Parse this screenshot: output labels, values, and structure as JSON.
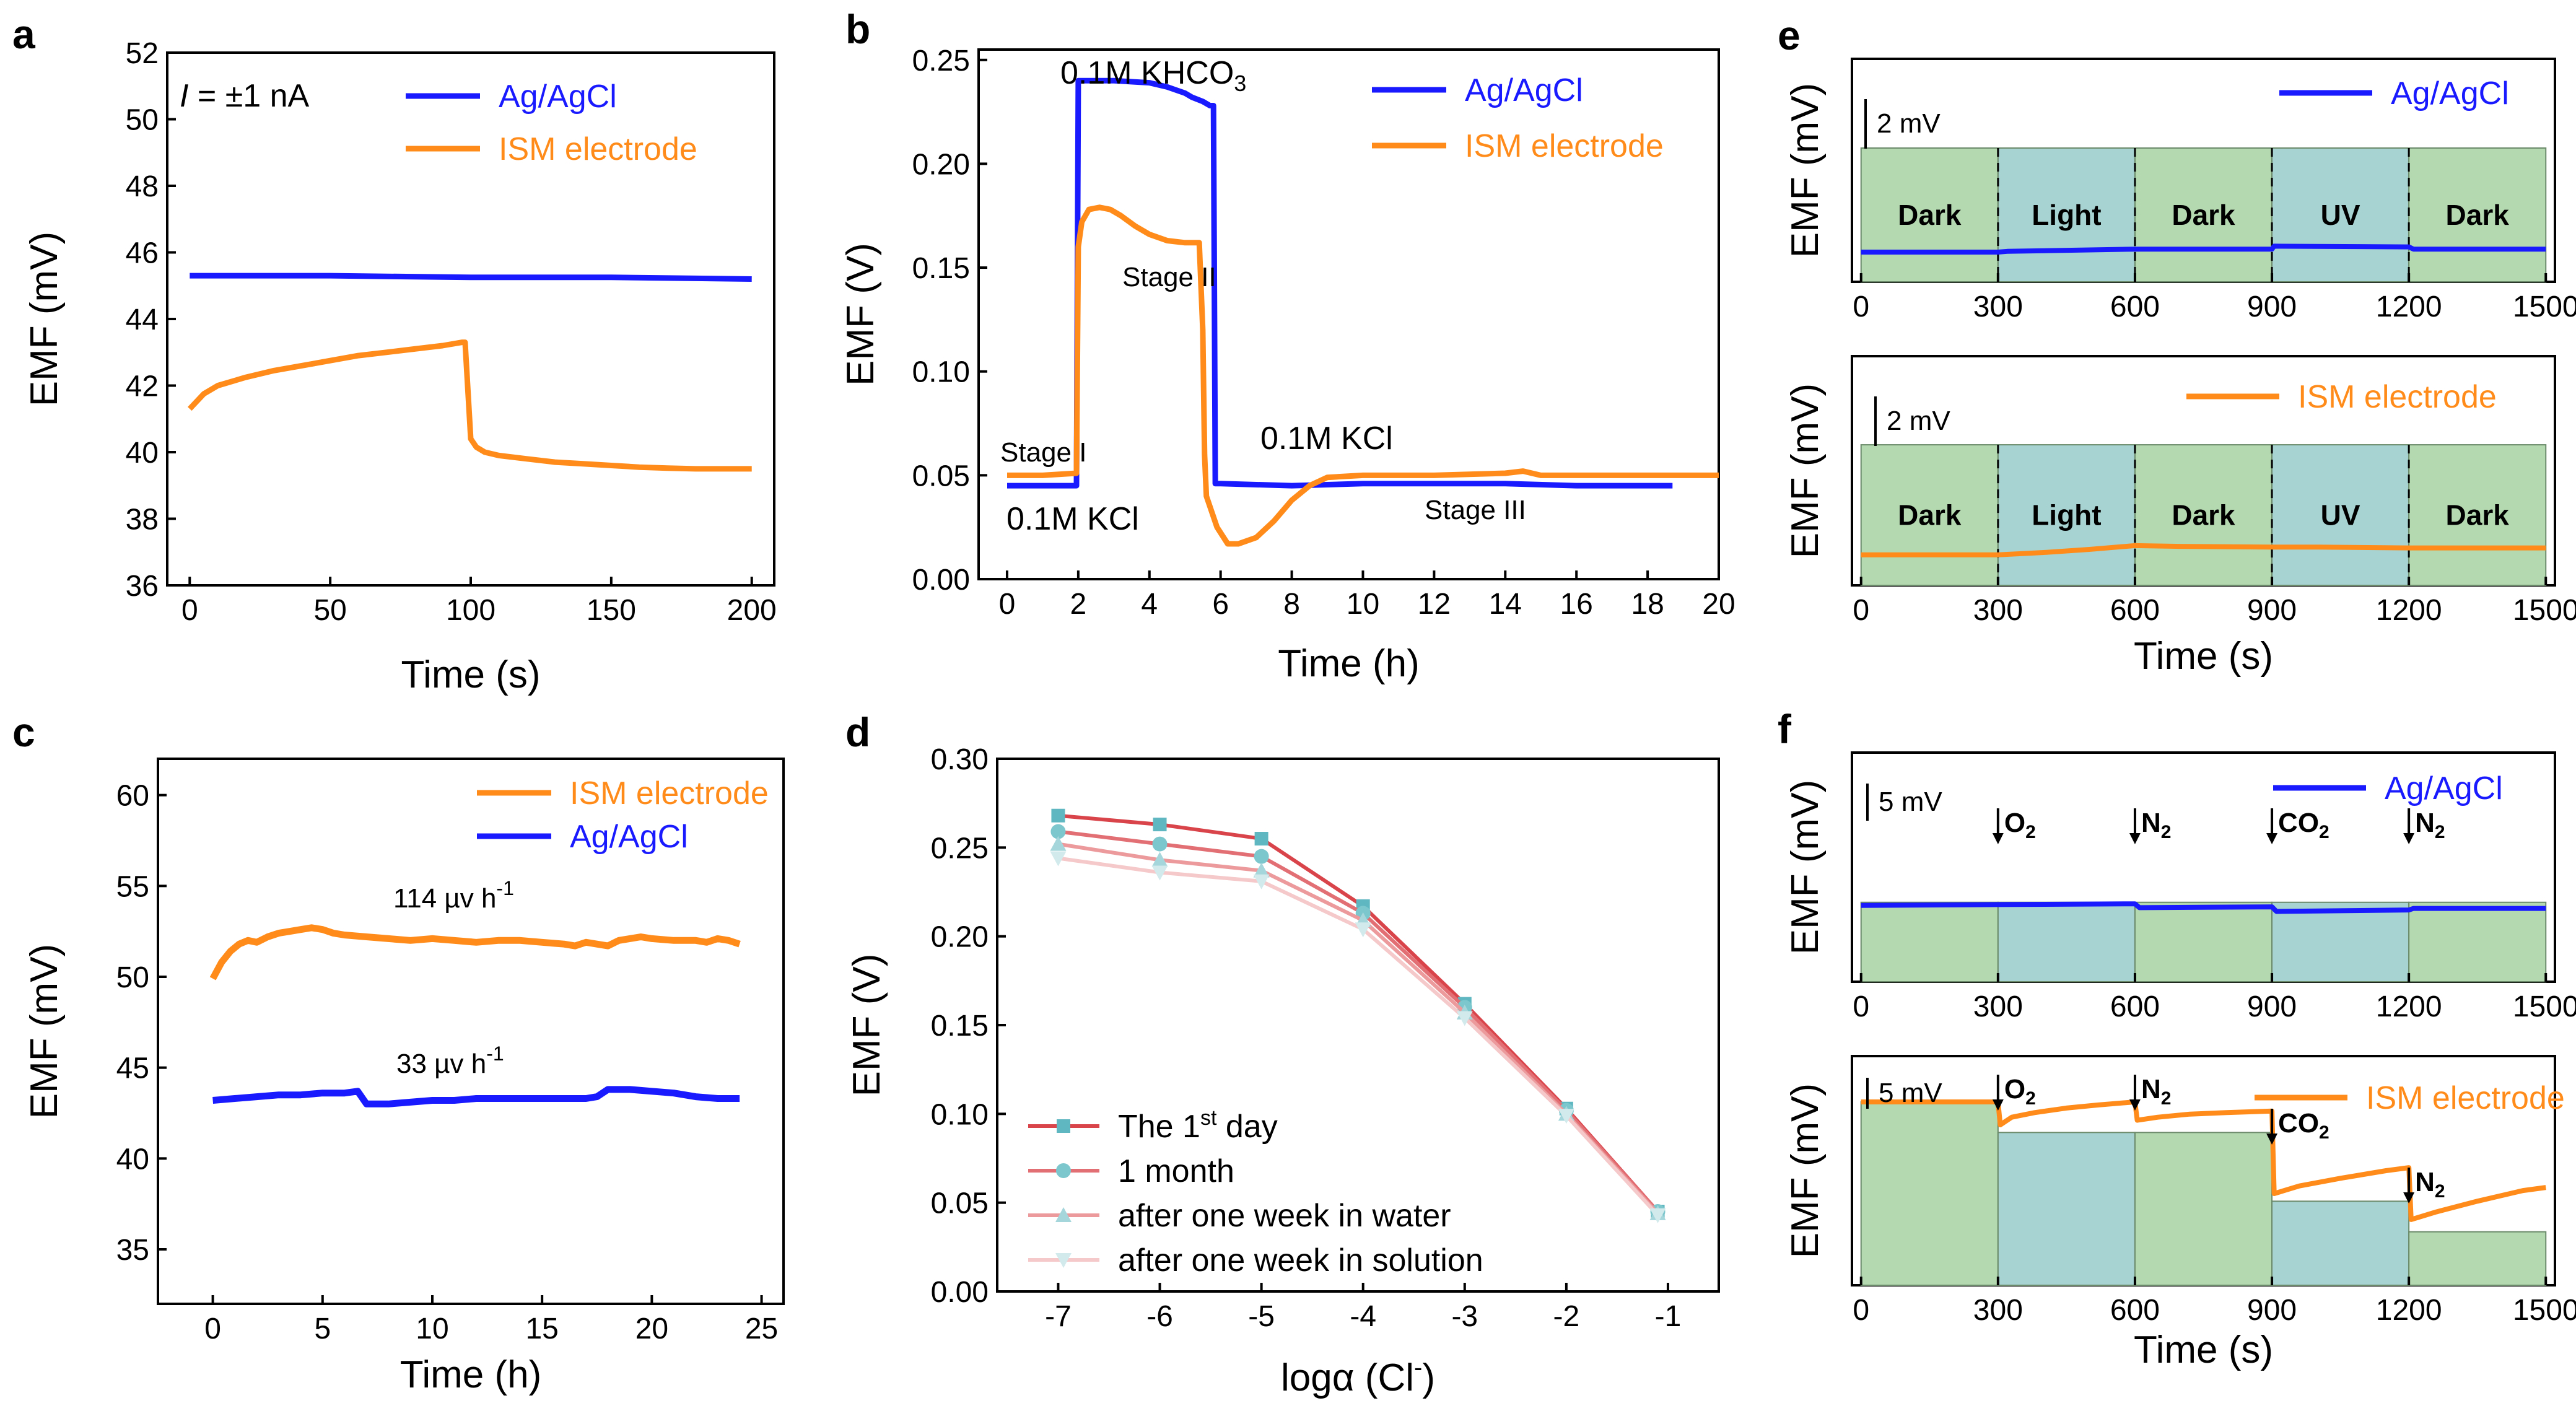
{
  "figure": {
    "panels": [
      {
        "id": "a",
        "label": "a"
      },
      {
        "id": "b",
        "label": "b"
      },
      {
        "id": "c",
        "label": "c"
      },
      {
        "id": "d",
        "label": "d"
      },
      {
        "id": "e",
        "label": "e"
      },
      {
        "id": "f",
        "label": "f"
      }
    ]
  },
  "colors": {
    "blue": "#1a1aff",
    "orange": "#ff8c1a",
    "green": "#b4d8b0",
    "teal": "#a7d3d3",
    "red1": "#d9434a",
    "red2": "#e26f73",
    "red3": "#ec9a9c",
    "red4": "#f5c8c9",
    "marker": "#5fb8c1"
  },
  "chart_data": [
    {
      "panel": "a",
      "type": "line",
      "xlabel": "Time (s)",
      "ylabel": "EMF (mV)",
      "xlim": [
        -8,
        208
      ],
      "ylim": [
        36,
        52
      ],
      "xticks": [
        0,
        50,
        100,
        150,
        200
      ],
      "yticks": [
        36,
        38,
        40,
        42,
        44,
        46,
        48,
        50,
        52
      ],
      "annotation_prefix": "I",
      "annotation_suffix": " = ±1 nA",
      "series": [
        {
          "name": "Ag/AgCl",
          "color": "blue",
          "x": [
            0,
            50,
            100,
            150,
            200
          ],
          "y": [
            45.3,
            45.3,
            45.25,
            45.25,
            45.2
          ]
        },
        {
          "name": "ISM electrode",
          "color": "orange",
          "x": [
            0,
            5,
            10,
            20,
            30,
            40,
            50,
            60,
            70,
            80,
            90,
            97,
            98,
            100,
            102,
            105,
            110,
            120,
            130,
            140,
            150,
            160,
            170,
            180,
            190,
            200
          ],
          "y": [
            41.3,
            41.75,
            42.0,
            42.25,
            42.45,
            42.6,
            42.75,
            42.9,
            43.0,
            43.1,
            43.2,
            43.3,
            43.3,
            40.4,
            40.15,
            40.0,
            39.9,
            39.8,
            39.7,
            39.65,
            39.6,
            39.55,
            39.52,
            39.5,
            39.5,
            39.5
          ]
        }
      ]
    },
    {
      "panel": "b",
      "type": "line",
      "xlabel": "Time (h)",
      "ylabel": "EMF (V)",
      "xlim": [
        -0.8,
        20.0
      ],
      "ylim": [
        0.0,
        0.255
      ],
      "xticks": [
        0,
        2,
        4,
        6,
        8,
        10,
        12,
        14,
        16,
        18,
        20
      ],
      "yticks": [
        0.0,
        0.05,
        0.1,
        0.15,
        0.2,
        0.25
      ],
      "annotations": {
        "khco3_prefix": "0.1M KHCO",
        "khco3_sub": "3",
        "kcl_top": "0.1M KCl",
        "kcl_bottom": "0.1M KCl",
        "stage1": "Stage I",
        "stage2": "Stage II",
        "stage3": "Stage III"
      },
      "series": [
        {
          "name": "Ag/AgCl",
          "color": "blue",
          "x": [
            0,
            1.95,
            2.0,
            2.5,
            3,
            4,
            4.5,
            5,
            5.2,
            5.5,
            5.7,
            5.8,
            5.85,
            6,
            8,
            10,
            12,
            14,
            16,
            18,
            18.7
          ],
          "y": [
            0.045,
            0.045,
            0.24,
            0.24,
            0.24,
            0.239,
            0.237,
            0.234,
            0.232,
            0.23,
            0.228,
            0.228,
            0.046,
            0.046,
            0.045,
            0.046,
            0.046,
            0.046,
            0.045,
            0.045,
            0.045
          ]
        },
        {
          "name": "ISM electrode",
          "color": "orange",
          "x": [
            0,
            1,
            1.95,
            2.0,
            2.1,
            2.3,
            2.6,
            2.9,
            3.2,
            3.6,
            4,
            4.5,
            5,
            5.4,
            5.5,
            5.55,
            5.6,
            5.9,
            6.2,
            6.5,
            7,
            7.5,
            8,
            8.5,
            9,
            10,
            12,
            14,
            14.5,
            15,
            16,
            18,
            20
          ],
          "y": [
            0.05,
            0.05,
            0.051,
            0.16,
            0.172,
            0.178,
            0.179,
            0.178,
            0.175,
            0.17,
            0.166,
            0.163,
            0.162,
            0.162,
            0.12,
            0.06,
            0.04,
            0.025,
            0.017,
            0.017,
            0.02,
            0.028,
            0.038,
            0.045,
            0.049,
            0.05,
            0.05,
            0.051,
            0.052,
            0.05,
            0.05,
            0.05,
            0.05
          ]
        }
      ]
    },
    {
      "panel": "c",
      "type": "line",
      "xlabel": "Time (h)",
      "ylabel": "EMF (mV)",
      "xlim": [
        -2.5,
        26
      ],
      "ylim": [
        32,
        62
      ],
      "xticks": [
        0,
        5,
        10,
        15,
        20,
        25
      ],
      "yticks": [
        35,
        40,
        45,
        50,
        55,
        60
      ],
      "annotations": {
        "orange_rate": "114 µv h",
        "blue_rate": "33 µv h",
        "exp": "-1"
      },
      "series": [
        {
          "name": "ISM electrode",
          "color": "orange",
          "x": [
            0,
            0.4,
            0.8,
            1.2,
            1.6,
            2,
            2.5,
            3,
            3.5,
            4,
            4.5,
            5,
            5.5,
            6,
            7,
            8,
            9,
            10,
            11,
            12,
            13,
            14,
            15,
            16,
            16.5,
            17,
            17.5,
            18,
            18.5,
            19,
            19.5,
            20,
            21,
            22,
            22.5,
            23,
            23.5,
            24
          ],
          "y": [
            49.9,
            50.8,
            51.4,
            51.8,
            52.0,
            51.9,
            52.2,
            52.4,
            52.5,
            52.6,
            52.7,
            52.6,
            52.4,
            52.3,
            52.2,
            52.1,
            52.0,
            52.1,
            52.0,
            51.9,
            52.0,
            52.0,
            51.9,
            51.8,
            51.7,
            51.9,
            51.8,
            51.7,
            52.0,
            52.1,
            52.2,
            52.1,
            52.0,
            52.0,
            51.9,
            52.1,
            52.0,
            51.8
          ]
        },
        {
          "name": "Ag/AgCl",
          "color": "blue",
          "x": [
            0,
            1,
            2,
            3,
            4,
            5,
            6,
            6.6,
            7,
            8,
            9,
            10,
            11,
            12,
            13,
            14,
            15,
            16,
            17,
            17.5,
            18,
            19,
            20,
            21,
            22,
            23,
            24
          ],
          "y": [
            43.2,
            43.3,
            43.4,
            43.5,
            43.5,
            43.6,
            43.6,
            43.7,
            43.0,
            43.0,
            43.1,
            43.2,
            43.2,
            43.3,
            43.3,
            43.3,
            43.3,
            43.3,
            43.3,
            43.4,
            43.8,
            43.8,
            43.7,
            43.6,
            43.4,
            43.3,
            43.3
          ]
        }
      ]
    },
    {
      "panel": "d",
      "type": "line",
      "xlabel_prefix": "logα (Cl",
      "xlabel_sup": "-",
      "xlabel_suffix": ")",
      "ylabel": "EMF (V)",
      "xlim": [
        -7.6,
        -0.5
      ],
      "ylim": [
        0.0,
        0.3
      ],
      "xticks": [
        -7,
        -6,
        -5,
        -4,
        -3,
        -2,
        -1
      ],
      "yticks": [
        0.0,
        0.05,
        0.1,
        0.15,
        0.2,
        0.25,
        0.3
      ],
      "x": [
        -7,
        -6,
        -5,
        -4,
        -3,
        -2,
        -1.1
      ],
      "series": [
        {
          "name_prefix": "The 1",
          "name_sup": "st",
          "name_suffix": " day",
          "color": "red1",
          "marker": "square",
          "y": [
            0.268,
            0.263,
            0.255,
            0.217,
            0.162,
            0.103,
            0.045
          ]
        },
        {
          "name": "1 month",
          "color": "red2",
          "marker": "circle",
          "y": [
            0.259,
            0.252,
            0.245,
            0.213,
            0.16,
            0.102,
            0.045
          ]
        },
        {
          "name": "after one week in water",
          "color": "red3",
          "marker": "triangle-up",
          "y": [
            0.252,
            0.243,
            0.237,
            0.209,
            0.157,
            0.1,
            0.044
          ]
        },
        {
          "name": "after one week in solution",
          "color": "red4",
          "marker": "triangle-down",
          "y": [
            0.244,
            0.236,
            0.231,
            0.204,
            0.154,
            0.099,
            0.043
          ]
        }
      ]
    },
    {
      "panel": "e-top",
      "type": "area",
      "ylabel": "EMF (mV)",
      "xlim": [
        -20,
        1520
      ],
      "xticks": [
        0,
        300,
        600,
        900,
        1200,
        1500
      ],
      "scalebar": "2 mV",
      "legend": "Ag/AgCl",
      "segments": [
        {
          "label": "Dark",
          "color": "green"
        },
        {
          "label": "Light",
          "color": "teal"
        },
        {
          "label": "Dark",
          "color": "green"
        },
        {
          "label": "UV",
          "color": "teal"
        },
        {
          "label": "Dark",
          "color": "green"
        }
      ],
      "series": [
        {
          "name": "Ag/AgCl",
          "color": "blue",
          "x": [
            0,
            300,
            320,
            600,
            900,
            905,
            1200,
            1210,
            1500
          ],
          "y": [
            2.0,
            2.0,
            2.05,
            2.2,
            2.2,
            2.4,
            2.35,
            2.2,
            2.2
          ]
        }
      ]
    },
    {
      "panel": "e-bottom",
      "type": "area",
      "ylabel": "EMF (mV)",
      "xlabel": "Time (s)",
      "xlim": [
        -20,
        1520
      ],
      "xticks": [
        0,
        300,
        600,
        900,
        1200,
        1500
      ],
      "scalebar": "2 mV",
      "legend": "ISM electrode",
      "segments": [
        {
          "label": "Dark",
          "color": "green"
        },
        {
          "label": "Light",
          "color": "teal"
        },
        {
          "label": "Dark",
          "color": "green"
        },
        {
          "label": "UV",
          "color": "teal"
        },
        {
          "label": "Dark",
          "color": "green"
        }
      ],
      "series": [
        {
          "name": "ISM electrode",
          "color": "orange",
          "x": [
            0,
            300,
            400,
            500,
            600,
            700,
            900,
            1000,
            1200,
            1300,
            1500
          ],
          "y": [
            2.0,
            2.0,
            2.15,
            2.35,
            2.6,
            2.55,
            2.5,
            2.5,
            2.45,
            2.45,
            2.45
          ]
        }
      ]
    },
    {
      "panel": "f-top",
      "type": "area",
      "ylabel": "EMF (mV)",
      "xlim": [
        -20,
        1520
      ],
      "xticks": [
        0,
        300,
        600,
        900,
        1200,
        1500
      ],
      "scalebar": "5 mV",
      "legend": "Ag/AgCl",
      "arrows": [
        {
          "x": 300,
          "label": "O",
          "sub": "2"
        },
        {
          "x": 600,
          "label": "N",
          "sub": "2"
        },
        {
          "x": 900,
          "label": "CO",
          "sub": "2"
        },
        {
          "x": 1200,
          "label": "N",
          "sub": "2"
        }
      ],
      "segments": [
        {
          "color": "green"
        },
        {
          "color": "teal"
        },
        {
          "color": "green"
        },
        {
          "color": "teal"
        },
        {
          "color": "green"
        }
      ],
      "series": [
        {
          "name": "Ag/AgCl",
          "color": "blue",
          "x": [
            0,
            300,
            600,
            610,
            900,
            910,
            1200,
            1210,
            1500
          ],
          "y": [
            5.0,
            5.05,
            5.1,
            4.85,
            4.9,
            4.6,
            4.7,
            4.8,
            4.8
          ]
        }
      ]
    },
    {
      "panel": "f-bottom",
      "type": "area",
      "ylabel": "EMF (mV)",
      "xlabel": "Time (s)",
      "xlim": [
        -20,
        1520
      ],
      "xticks": [
        0,
        300,
        600,
        900,
        1200,
        1500
      ],
      "scalebar": "5 mV",
      "legend": "ISM electrode",
      "arrows": [
        {
          "x": 300,
          "label": "O",
          "sub": "2"
        },
        {
          "x": 600,
          "label": "N",
          "sub": "2"
        },
        {
          "x": 900,
          "label": "CO",
          "sub": "2"
        },
        {
          "x": 1200,
          "label": "N",
          "sub": "2"
        }
      ],
      "segments": [
        {
          "color": "green",
          "top": 12
        },
        {
          "color": "teal",
          "top": 10
        },
        {
          "color": "green",
          "top": 10
        },
        {
          "color": "teal",
          "top": 5.5
        },
        {
          "color": "green",
          "top": 3.5
        }
      ],
      "series": [
        {
          "name": "ISM electrode",
          "color": "orange",
          "x": [
            0,
            300,
            305,
            330,
            380,
            450,
            520,
            600,
            605,
            650,
            720,
            800,
            900,
            905,
            960,
            1050,
            1150,
            1200,
            1205,
            1260,
            1350,
            1450,
            1500
          ],
          "y": [
            12,
            12,
            10.5,
            11,
            11.3,
            11.6,
            11.8,
            12,
            10.8,
            11,
            11.2,
            11.3,
            11.4,
            6.0,
            6.5,
            7.0,
            7.5,
            7.7,
            4.3,
            4.8,
            5.5,
            6.2,
            6.4
          ]
        }
      ]
    }
  ]
}
